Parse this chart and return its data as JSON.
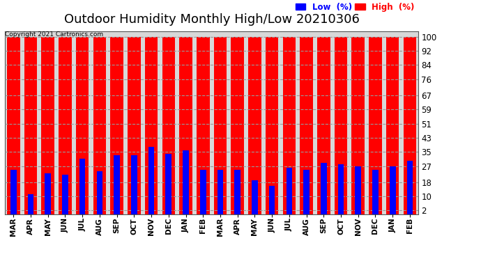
{
  "title": "Outdoor Humidity Monthly High/Low 20210306",
  "copyright": "Copyright 2021 Cartronics.com",
  "months": [
    "MAR",
    "APR",
    "MAY",
    "JUN",
    "JUL",
    "AUG",
    "SEP",
    "OCT",
    "NOV",
    "DEC",
    "JAN",
    "FEB",
    "MAR",
    "APR",
    "MAY",
    "JUN",
    "JUL",
    "AUG",
    "SEP",
    "OCT",
    "NOV",
    "DEC",
    "JAN",
    "FEB"
  ],
  "high_values": [
    100,
    100,
    100,
    100,
    100,
    100,
    100,
    100,
    100,
    100,
    100,
    100,
    100,
    100,
    100,
    100,
    100,
    100,
    100,
    100,
    100,
    100,
    100,
    100
  ],
  "low_values": [
    25,
    11,
    23,
    22,
    31,
    24,
    33,
    33,
    38,
    34,
    36,
    25,
    25,
    25,
    19,
    16,
    26,
    25,
    29,
    28,
    27,
    25,
    27,
    30
  ],
  "high_color": "#ff0000",
  "low_color": "#0000ff",
  "bg_color": "#ffffff",
  "yticks": [
    2,
    10,
    18,
    27,
    35,
    43,
    51,
    59,
    67,
    76,
    84,
    92,
    100
  ],
  "ylim": [
    0,
    103
  ],
  "title_fontsize": 13,
  "legend_low_label": "Low  (%)",
  "legend_high_label": "High  (%)",
  "grid_color": "#999999",
  "axes_bg_color": "#d8d8d8"
}
